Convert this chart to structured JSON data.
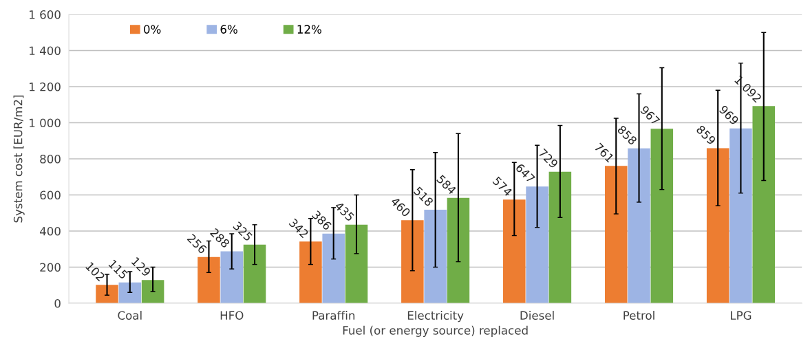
{
  "chart_data": {
    "type": "bar",
    "xlabel": "Fuel (or energy source) replaced",
    "ylabel": "System cost [EUR/m2]",
    "categories": [
      "Coal",
      "HFO",
      "Paraffin",
      "Electricity",
      "Diesel",
      "Petrol",
      "LPG"
    ],
    "series": [
      {
        "name": "0%",
        "color": "#ed7d31",
        "values": [
          102,
          256,
          342,
          460,
          574,
          761,
          859
        ],
        "errors": [
          [
            45,
            160
          ],
          [
            170,
            345
          ],
          [
            215,
            470
          ],
          [
            180,
            740
          ],
          [
            375,
            780
          ],
          [
            495,
            1025
          ],
          [
            540,
            1180
          ]
        ]
      },
      {
        "name": "6%",
        "color": "#9db4e4",
        "values": [
          115,
          288,
          386,
          518,
          647,
          858,
          969
        ],
        "errors": [
          [
            60,
            175
          ],
          [
            190,
            385
          ],
          [
            245,
            530
          ],
          [
            200,
            835
          ],
          [
            420,
            875
          ],
          [
            560,
            1160
          ],
          [
            610,
            1330
          ]
        ]
      },
      {
        "name": "12%",
        "color": "#70ad47",
        "values": [
          129,
          325,
          435,
          584,
          729,
          967,
          1092
        ],
        "value_labels": [
          "129",
          "325",
          "435",
          "584",
          "729",
          "967",
          "1 092"
        ],
        "errors": [
          [
            65,
            200
          ],
          [
            215,
            435
          ],
          [
            275,
            600
          ],
          [
            230,
            940
          ],
          [
            475,
            985
          ],
          [
            630,
            1305
          ],
          [
            680,
            1500
          ]
        ]
      }
    ],
    "data_labels": true,
    "ylim": [
      0,
      1600
    ],
    "yticks": [
      0,
      200,
      400,
      600,
      800,
      {
        "value": 1000,
        "label": "1 000"
      },
      {
        "value": 1200,
        "label": "1 200"
      },
      {
        "value": 1400,
        "label": "1 400"
      },
      {
        "value": 1600,
        "label": "1 600"
      }
    ],
    "grid": "y",
    "legend": "top left"
  }
}
